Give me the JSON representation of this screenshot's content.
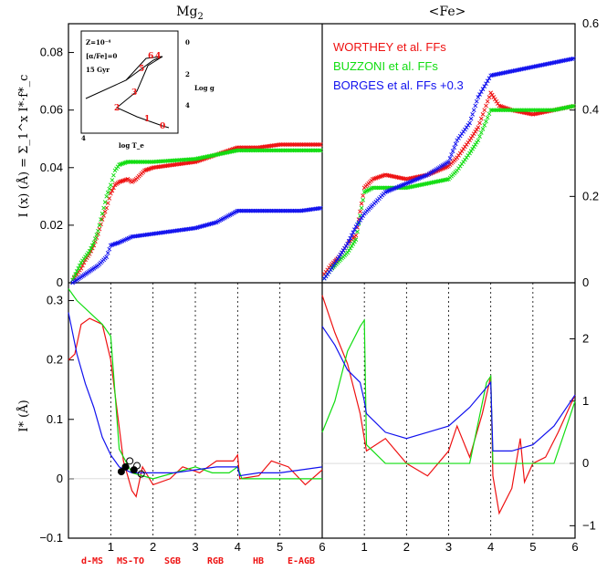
{
  "colors": {
    "worthey": "#ee1111",
    "buzzoni": "#11dd11",
    "borges": "#1111ee",
    "axis": "#000000"
  },
  "panel_titles": {
    "left": "Mg",
    "left_sub": "2",
    "right": "<Fe>"
  },
  "ylabel_top": "I (x) (Å) = Σ_1^x I*·f*_c",
  "ylabel_bottom": "I* (Å)",
  "legend": [
    "WORTHEY et al. FFs",
    "BUZZONI et al. FFs",
    "BORGES et al. FFs +0.3"
  ],
  "phases": [
    {
      "label": "d-MS",
      "x": 0.4
    },
    {
      "label": "MS-TO",
      "x": 1.45
    },
    {
      "label": "SGB",
      "x": 2.3
    },
    {
      "label": "RGB",
      "x": 3.25
    },
    {
      "label": "HB",
      "x": 4.35
    },
    {
      "label": "E-AGB",
      "x": 5.2
    }
  ],
  "inset": {
    "lines": [
      "Z=10⁻⁴",
      "[α/Fe]=0",
      "15 Gyr"
    ],
    "xlabel": "log T_e",
    "ylabel": "Log g",
    "point_labels": [
      "0",
      "1",
      "2",
      "3",
      "4",
      "5",
      "6"
    ]
  },
  "chart_data": [
    {
      "type": "scatter",
      "panel": "top-left",
      "xlim": [
        0,
        6
      ],
      "ylim": [
        0,
        0.09
      ],
      "yticks": [
        "0",
        "0.02",
        "0.04",
        "0.06",
        "0.08"
      ],
      "xticks": [],
      "series": [
        {
          "name": "WORTHEY et al. FFs",
          "x": [
            0.1,
            0.2,
            0.3,
            0.4,
            0.5,
            0.6,
            0.7,
            0.8,
            0.9,
            1.0,
            1.1,
            1.2,
            1.4,
            1.5,
            1.6,
            1.8,
            2.0,
            3.0,
            4.0,
            4.5,
            5.0,
            5.5,
            6.0
          ],
          "y": [
            0.001,
            0.003,
            0.005,
            0.008,
            0.01,
            0.013,
            0.017,
            0.022,
            0.026,
            0.031,
            0.034,
            0.035,
            0.036,
            0.035,
            0.036,
            0.039,
            0.04,
            0.042,
            0.047,
            0.047,
            0.048,
            0.048,
            0.048
          ]
        },
        {
          "name": "BUZZONI et al. FFs",
          "x": [
            0.1,
            0.2,
            0.3,
            0.4,
            0.5,
            0.6,
            0.7,
            0.8,
            0.9,
            1.0,
            1.1,
            1.2,
            1.4,
            1.6,
            2.0,
            3.0,
            4.0,
            4.5,
            5.0,
            5.5,
            6.0
          ],
          "y": [
            0.001,
            0.004,
            0.007,
            0.009,
            0.011,
            0.014,
            0.018,
            0.024,
            0.03,
            0.034,
            0.039,
            0.041,
            0.042,
            0.042,
            0.042,
            0.043,
            0.046,
            0.046,
            0.046,
            0.046,
            0.046
          ]
        },
        {
          "name": "BORGES et al. FFs",
          "x": [
            0.1,
            0.3,
            0.5,
            0.7,
            0.9,
            1.0,
            1.2,
            1.5,
            2.0,
            2.5,
            3.0,
            3.5,
            4.0,
            4.5,
            5.0,
            5.5,
            6.0
          ],
          "y": [
            0.0,
            0.002,
            0.004,
            0.006,
            0.009,
            0.013,
            0.014,
            0.016,
            0.017,
            0.018,
            0.019,
            0.021,
            0.025,
            0.025,
            0.025,
            0.025,
            0.026
          ]
        }
      ]
    },
    {
      "type": "scatter",
      "panel": "top-right",
      "xlim": [
        0,
        6
      ],
      "ylim": [
        0,
        0.6
      ],
      "yticks": [
        "0",
        "0.2",
        "0.4",
        "0.6"
      ],
      "xticks": [],
      "series": [
        {
          "name": "WORTHEY et al. FFs",
          "x": [
            0.05,
            0.2,
            0.4,
            0.6,
            0.8,
            1.0,
            1.2,
            1.5,
            2.0,
            2.5,
            3.0,
            3.2,
            3.5,
            3.7,
            4.0,
            4.2,
            4.5,
            5.0,
            5.5,
            6.0
          ],
          "y": [
            0.02,
            0.04,
            0.06,
            0.09,
            0.11,
            0.22,
            0.24,
            0.25,
            0.24,
            0.25,
            0.27,
            0.29,
            0.33,
            0.36,
            0.44,
            0.41,
            0.4,
            0.39,
            0.4,
            0.41
          ]
        },
        {
          "name": "BUZZONI et al. FFs",
          "x": [
            0.05,
            0.2,
            0.4,
            0.6,
            0.8,
            1.0,
            1.2,
            1.5,
            2.0,
            2.5,
            3.0,
            3.2,
            3.5,
            3.7,
            4.0,
            4.5,
            5.0,
            5.5,
            6.0
          ],
          "y": [
            0.01,
            0.03,
            0.05,
            0.07,
            0.1,
            0.21,
            0.22,
            0.22,
            0.22,
            0.23,
            0.24,
            0.26,
            0.3,
            0.33,
            0.4,
            0.4,
            0.4,
            0.4,
            0.41
          ]
        },
        {
          "name": "BORGES et al. FFs +0.3",
          "x": [
            0.05,
            0.2,
            0.4,
            0.6,
            0.8,
            1.0,
            1.2,
            1.5,
            2.0,
            2.5,
            3.0,
            3.2,
            3.5,
            3.7,
            4.0,
            4.5,
            5.0,
            5.5,
            6.0
          ],
          "y": [
            0.01,
            0.03,
            0.06,
            0.09,
            0.13,
            0.16,
            0.18,
            0.21,
            0.23,
            0.25,
            0.28,
            0.33,
            0.37,
            0.43,
            0.48,
            0.49,
            0.5,
            0.51,
            0.52
          ]
        }
      ]
    },
    {
      "type": "line",
      "panel": "bottom-left",
      "xlim": [
        0,
        6
      ],
      "ylim": [
        -0.1,
        0.33
      ],
      "yticks": [
        "−0.1",
        "0",
        "0.1",
        "0.2",
        "0.3"
      ],
      "xticks": [
        "1",
        "2",
        "3",
        "4",
        "5",
        "6"
      ],
      "series": [
        {
          "name": "WORTHEY et al. FFs",
          "x": [
            0,
            0.15,
            0.3,
            0.5,
            0.8,
            1.0,
            1.3,
            1.5,
            1.6,
            1.75,
            2.0,
            2.4,
            2.7,
            3.1,
            3.5,
            3.9,
            4.0,
            4.05,
            4.5,
            4.8,
            5.2,
            5.6,
            6.0
          ],
          "y": [
            0.2,
            0.21,
            0.26,
            0.27,
            0.26,
            0.2,
            0.03,
            -0.02,
            -0.03,
            0.02,
            -0.01,
            0.0,
            0.02,
            0.01,
            0.03,
            0.03,
            0.04,
            0.0,
            0.005,
            0.03,
            0.02,
            -0.01,
            0.015
          ]
        },
        {
          "name": "BUZZONI et al. FFs",
          "x": [
            0,
            0.2,
            0.5,
            0.8,
            1.0,
            1.2,
            1.5,
            2.0,
            2.5,
            3.0,
            3.4,
            3.8,
            4.0,
            4.1,
            4.5,
            5.0,
            5.5,
            6.0
          ],
          "y": [
            0.32,
            0.3,
            0.28,
            0.26,
            0.24,
            0.05,
            0.01,
            0.0,
            0.01,
            0.02,
            0.01,
            0.01,
            0.02,
            0.0,
            0.0,
            0.0,
            0.0,
            0.0
          ]
        },
        {
          "name": "BORGES et al. FFs",
          "x": [
            0,
            0.2,
            0.4,
            0.6,
            0.8,
            1.0,
            1.2,
            1.5,
            2.0,
            2.5,
            3.0,
            3.5,
            4.0,
            4.05,
            4.5,
            5.0,
            5.5,
            6.0
          ],
          "y": [
            0.28,
            0.21,
            0.16,
            0.12,
            0.07,
            0.04,
            0.02,
            0.01,
            0.01,
            0.01,
            0.015,
            0.02,
            0.02,
            0.005,
            0.01,
            0.01,
            0.015,
            0.02
          ]
        }
      ],
      "points": [
        {
          "x": 1.25,
          "y": 0.012,
          "filled": true
        },
        {
          "x": 1.35,
          "y": 0.02,
          "filled": true
        },
        {
          "x": 1.45,
          "y": 0.03,
          "filled": false
        },
        {
          "x": 1.55,
          "y": 0.015,
          "filled": true
        },
        {
          "x": 1.62,
          "y": 0.022,
          "filled": false
        },
        {
          "x": 1.72,
          "y": 0.008,
          "filled": false
        }
      ]
    },
    {
      "type": "line",
      "panel": "bottom-right",
      "xlim": [
        0,
        6
      ],
      "ylim": [
        -1.2,
        2.9
      ],
      "yticks": [
        "−1",
        "0",
        "1",
        "2"
      ],
      "xticks": [
        "1",
        "2",
        "3",
        "4",
        "5",
        "6"
      ],
      "series": [
        {
          "name": "WORTHEY et al. FFs",
          "x": [
            0,
            0.3,
            0.6,
            0.9,
            1.0,
            1.05,
            1.5,
            2.0,
            2.5,
            3.0,
            3.2,
            3.5,
            3.8,
            4.0,
            4.05,
            4.2,
            4.5,
            4.7,
            4.8,
            5.0,
            5.3,
            5.6,
            6.0
          ],
          "y": [
            2.7,
            2.1,
            1.6,
            0.8,
            0.4,
            0.2,
            0.4,
            0.0,
            -0.2,
            0.2,
            0.6,
            0.1,
            0.8,
            1.4,
            -0.2,
            -0.8,
            -0.4,
            0.4,
            -0.3,
            0.0,
            0.1,
            0.5,
            1.1
          ]
        },
        {
          "name": "BUZZONI et al. FFs",
          "x": [
            0,
            0.3,
            0.6,
            0.9,
            1.0,
            1.05,
            1.5,
            2.0,
            2.5,
            3.0,
            3.5,
            3.9,
            4.0,
            4.05,
            4.5,
            5.0,
            5.5,
            6.0
          ],
          "y": [
            0.5,
            1.0,
            1.8,
            2.2,
            2.3,
            0.3,
            0.0,
            0.0,
            0.0,
            0.0,
            0.0,
            1.3,
            1.4,
            0.0,
            0.0,
            0.0,
            0.0,
            1.0
          ]
        },
        {
          "name": "BORGES et al. FFs",
          "x": [
            0,
            0.3,
            0.6,
            0.9,
            1.0,
            1.05,
            1.5,
            2.0,
            2.5,
            3.0,
            3.5,
            4.0,
            4.05,
            4.5,
            5.0,
            5.5,
            6.0
          ],
          "y": [
            2.2,
            1.9,
            1.5,
            1.3,
            1.0,
            0.8,
            0.5,
            0.4,
            0.5,
            0.6,
            0.9,
            1.3,
            0.2,
            0.2,
            0.3,
            0.6,
            1.1
          ]
        }
      ]
    }
  ]
}
